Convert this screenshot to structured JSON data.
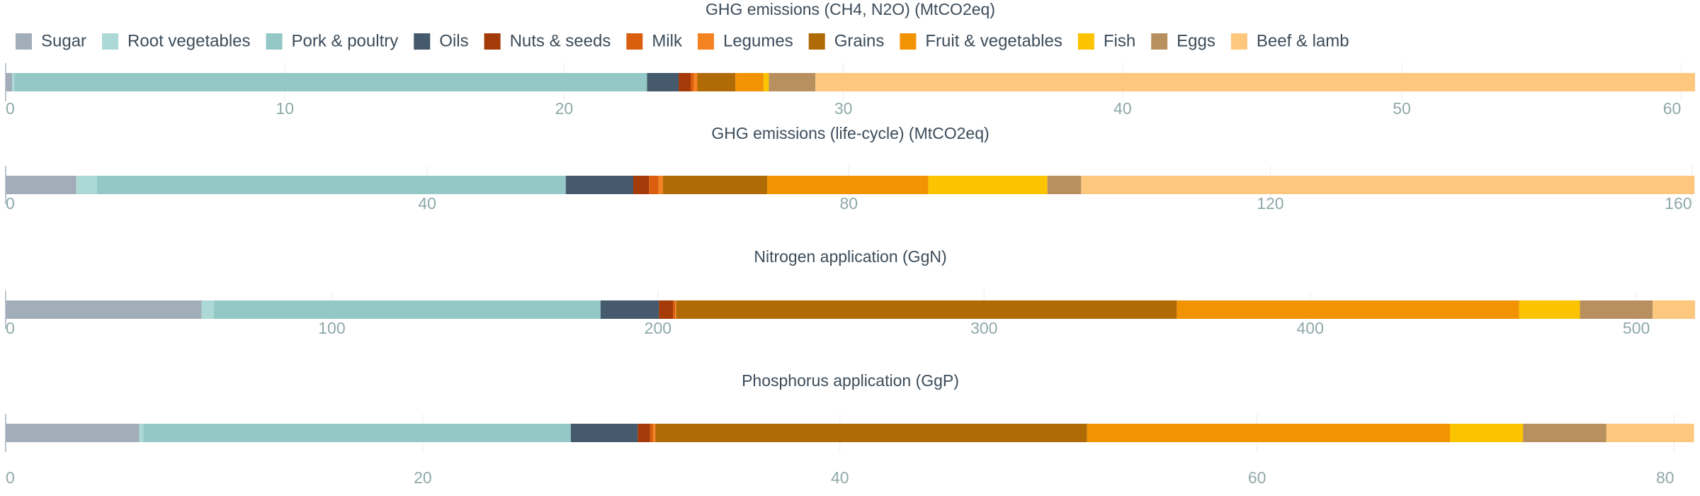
{
  "legend": [
    {
      "name": "Sugar",
      "color": "#a2adba"
    },
    {
      "name": "Root vegetables",
      "color": "#acd8d6"
    },
    {
      "name": "Pork & poultry",
      "color": "#93c8c7"
    },
    {
      "name": "Oils",
      "color": "#455a6c"
    },
    {
      "name": "Nuts & seeds",
      "color": "#a33a08"
    },
    {
      "name": "Milk",
      "color": "#d95f0e"
    },
    {
      "name": "Legumes",
      "color": "#f58220"
    },
    {
      "name": "Grains",
      "color": "#b06a06"
    },
    {
      "name": "Fruit & vegetables",
      "color": "#f29304"
    },
    {
      "name": "Fish",
      "color": "#fcc400"
    },
    {
      "name": "Eggs",
      "color": "#b89060"
    },
    {
      "name": "Beef & lamb",
      "color": "#fdc77e"
    }
  ],
  "chart_data": [
    {
      "type": "stacked-bar",
      "title": "GHG emissions (CH4, N2O) (MtCO2eq)",
      "values": [
        0.23,
        0.08,
        22.66,
        1.13,
        0.43,
        0.12,
        0.12,
        1.36,
        1.01,
        0.19,
        1.67,
        31.5
      ],
      "xlim": [
        0,
        60.5
      ],
      "xticks": [
        0,
        10,
        20,
        30,
        40,
        50,
        60
      ],
      "grid": true
    },
    {
      "type": "stacked-bar",
      "title": "GHG emissions (life-cycle) (MtCO2eq)",
      "values": [
        6.7,
        1.95,
        44.5,
        6.4,
        1.5,
        0.9,
        0.4,
        9.9,
        15.3,
        11.3,
        3.2,
        58.2
      ],
      "xlim": [
        0,
        160.3
      ],
      "xticks": [
        0,
        40,
        80,
        120,
        160
      ],
      "grid": true
    },
    {
      "type": "stacked-bar",
      "title": "Nitrogen application (GgN)",
      "values": [
        60.1,
        3.7,
        118.6,
        17.9,
        4.3,
        0.7,
        0.3,
        153.5,
        105,
        18.6,
        22.3,
        13
      ],
      "xlim": [
        0,
        518
      ],
      "xticks": [
        0,
        100,
        200,
        300,
        400,
        500
      ],
      "grid": true
    },
    {
      "type": "stacked-bar",
      "title": "Phosphorus application (GgP)",
      "values": [
        6.4,
        0.2,
        20.5,
        3.2,
        0.6,
        0.15,
        0.1,
        20.7,
        17.4,
        3.5,
        4.0,
        4.2
      ],
      "xlim": [
        0,
        81
      ],
      "xticks": [
        0,
        20,
        40,
        60,
        80
      ],
      "grid": true
    }
  ]
}
